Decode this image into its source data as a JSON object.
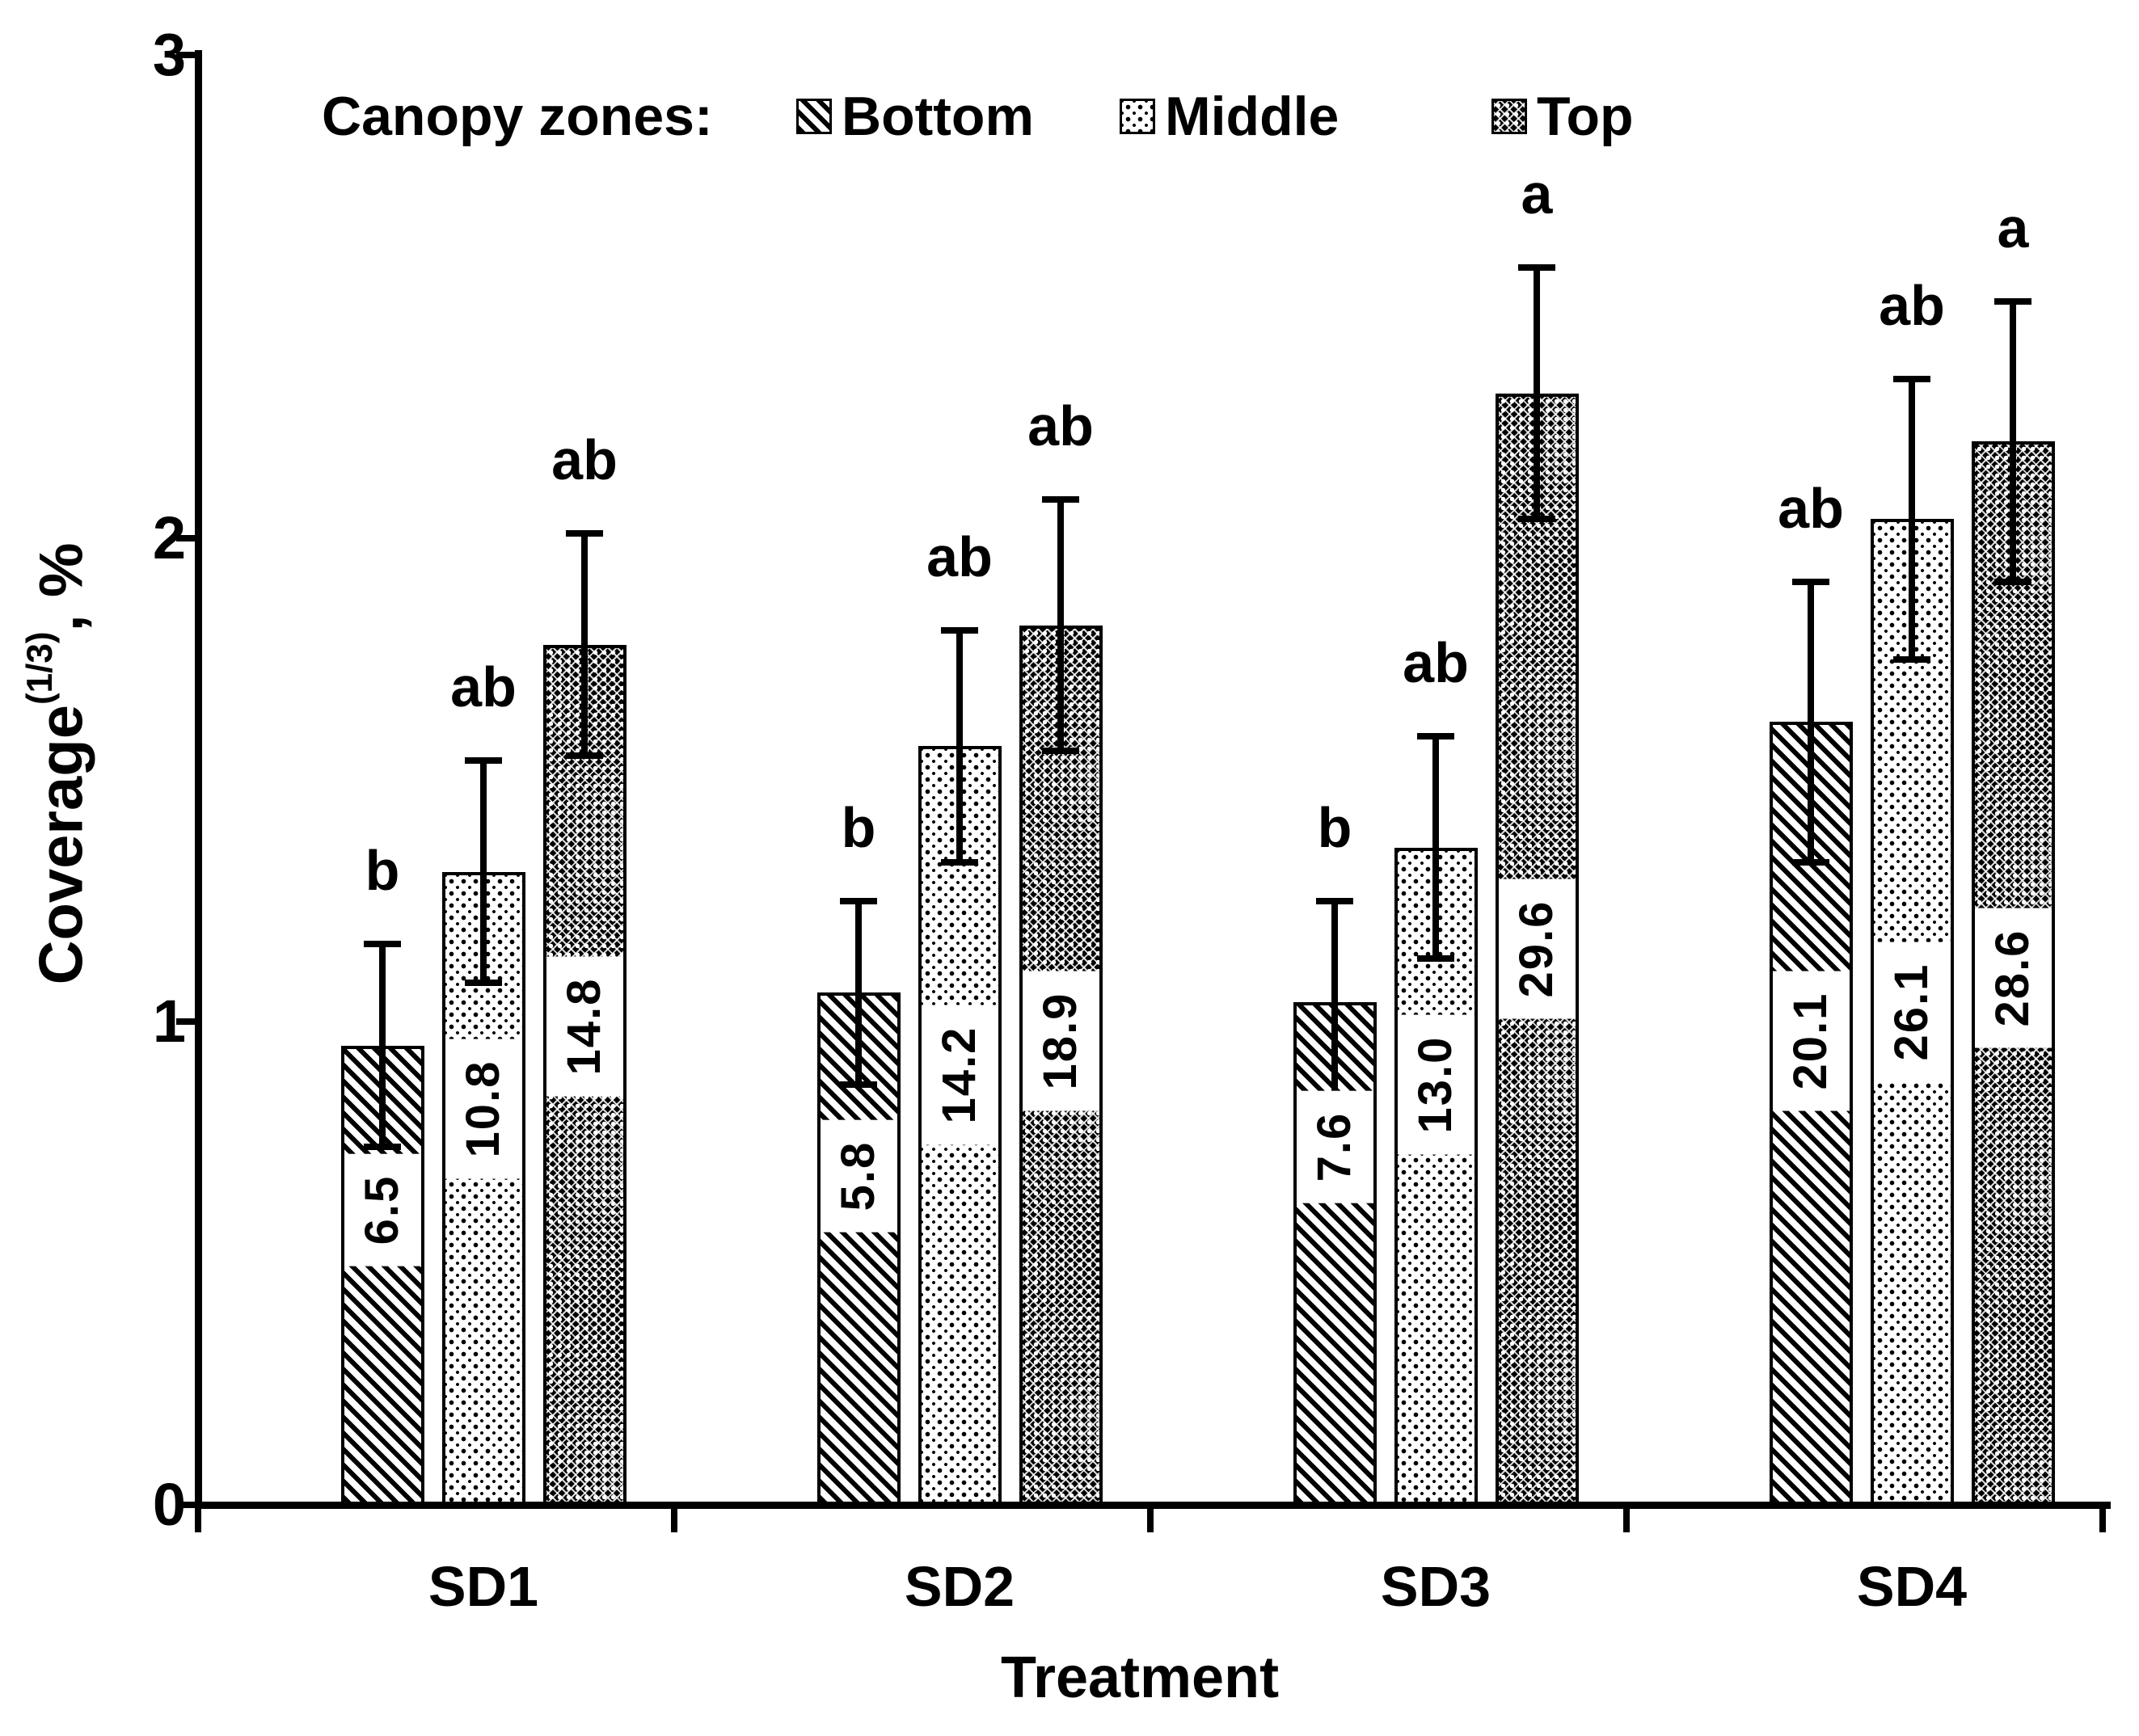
{
  "figure": {
    "legend_title": "Canopy zones:",
    "y_title_base": "Coverage",
    "y_title_sup": "(1/3)",
    "y_title_suffix": ", %",
    "x_title": "Treatment"
  },
  "chart_data": {
    "type": "bar",
    "title": "",
    "xlabel": "Treatment",
    "ylabel": "Coverage^(1/3), %",
    "ylim": [
      0,
      3
    ],
    "yticks": [
      0,
      1,
      2,
      3
    ],
    "grid": false,
    "legend_position": "inside-top-left",
    "legend_title": "Canopy zones:",
    "categories": [
      "SD1",
      "SD2",
      "SD3",
      "SD4"
    ],
    "series": [
      {
        "name": "Bottom",
        "pattern": "diagonal-hatch",
        "values": [
          0.95,
          1.06,
          1.04,
          1.62
        ],
        "errors": [
          0.21,
          0.19,
          0.21,
          0.29
        ],
        "sig_letters": [
          "b",
          "b",
          "b",
          "ab"
        ],
        "bar_labels": [
          "6.5",
          "5.8",
          "7.6",
          "20.1"
        ],
        "label_y": [
          0.61,
          0.68,
          0.74,
          0.96
        ]
      },
      {
        "name": "Middle",
        "pattern": "sparse-dots",
        "values": [
          1.31,
          1.57,
          1.36,
          2.04
        ],
        "errors": [
          0.23,
          0.24,
          0.23,
          0.29
        ],
        "sig_letters": [
          "ab",
          "ab",
          "ab",
          "ab"
        ],
        "bar_labels": [
          "10.8",
          "14.2",
          "13.0",
          "26.1"
        ],
        "label_y": [
          0.82,
          0.89,
          0.87,
          1.02
        ]
      },
      {
        "name": "Top",
        "pattern": "dense-crosshatch",
        "values": [
          1.78,
          1.82,
          2.3,
          2.2
        ],
        "errors": [
          0.23,
          0.26,
          0.26,
          0.29
        ],
        "sig_letters": [
          "ab",
          "ab",
          "a",
          "a"
        ],
        "bar_labels": [
          "14.8",
          "18.9",
          "29.6",
          "28.6"
        ],
        "label_y": [
          0.99,
          0.96,
          1.15,
          1.09
        ]
      }
    ],
    "error_bar_style": "symmetric-with-caps"
  },
  "colors": {
    "foreground": "#000000",
    "background": "#ffffff"
  }
}
